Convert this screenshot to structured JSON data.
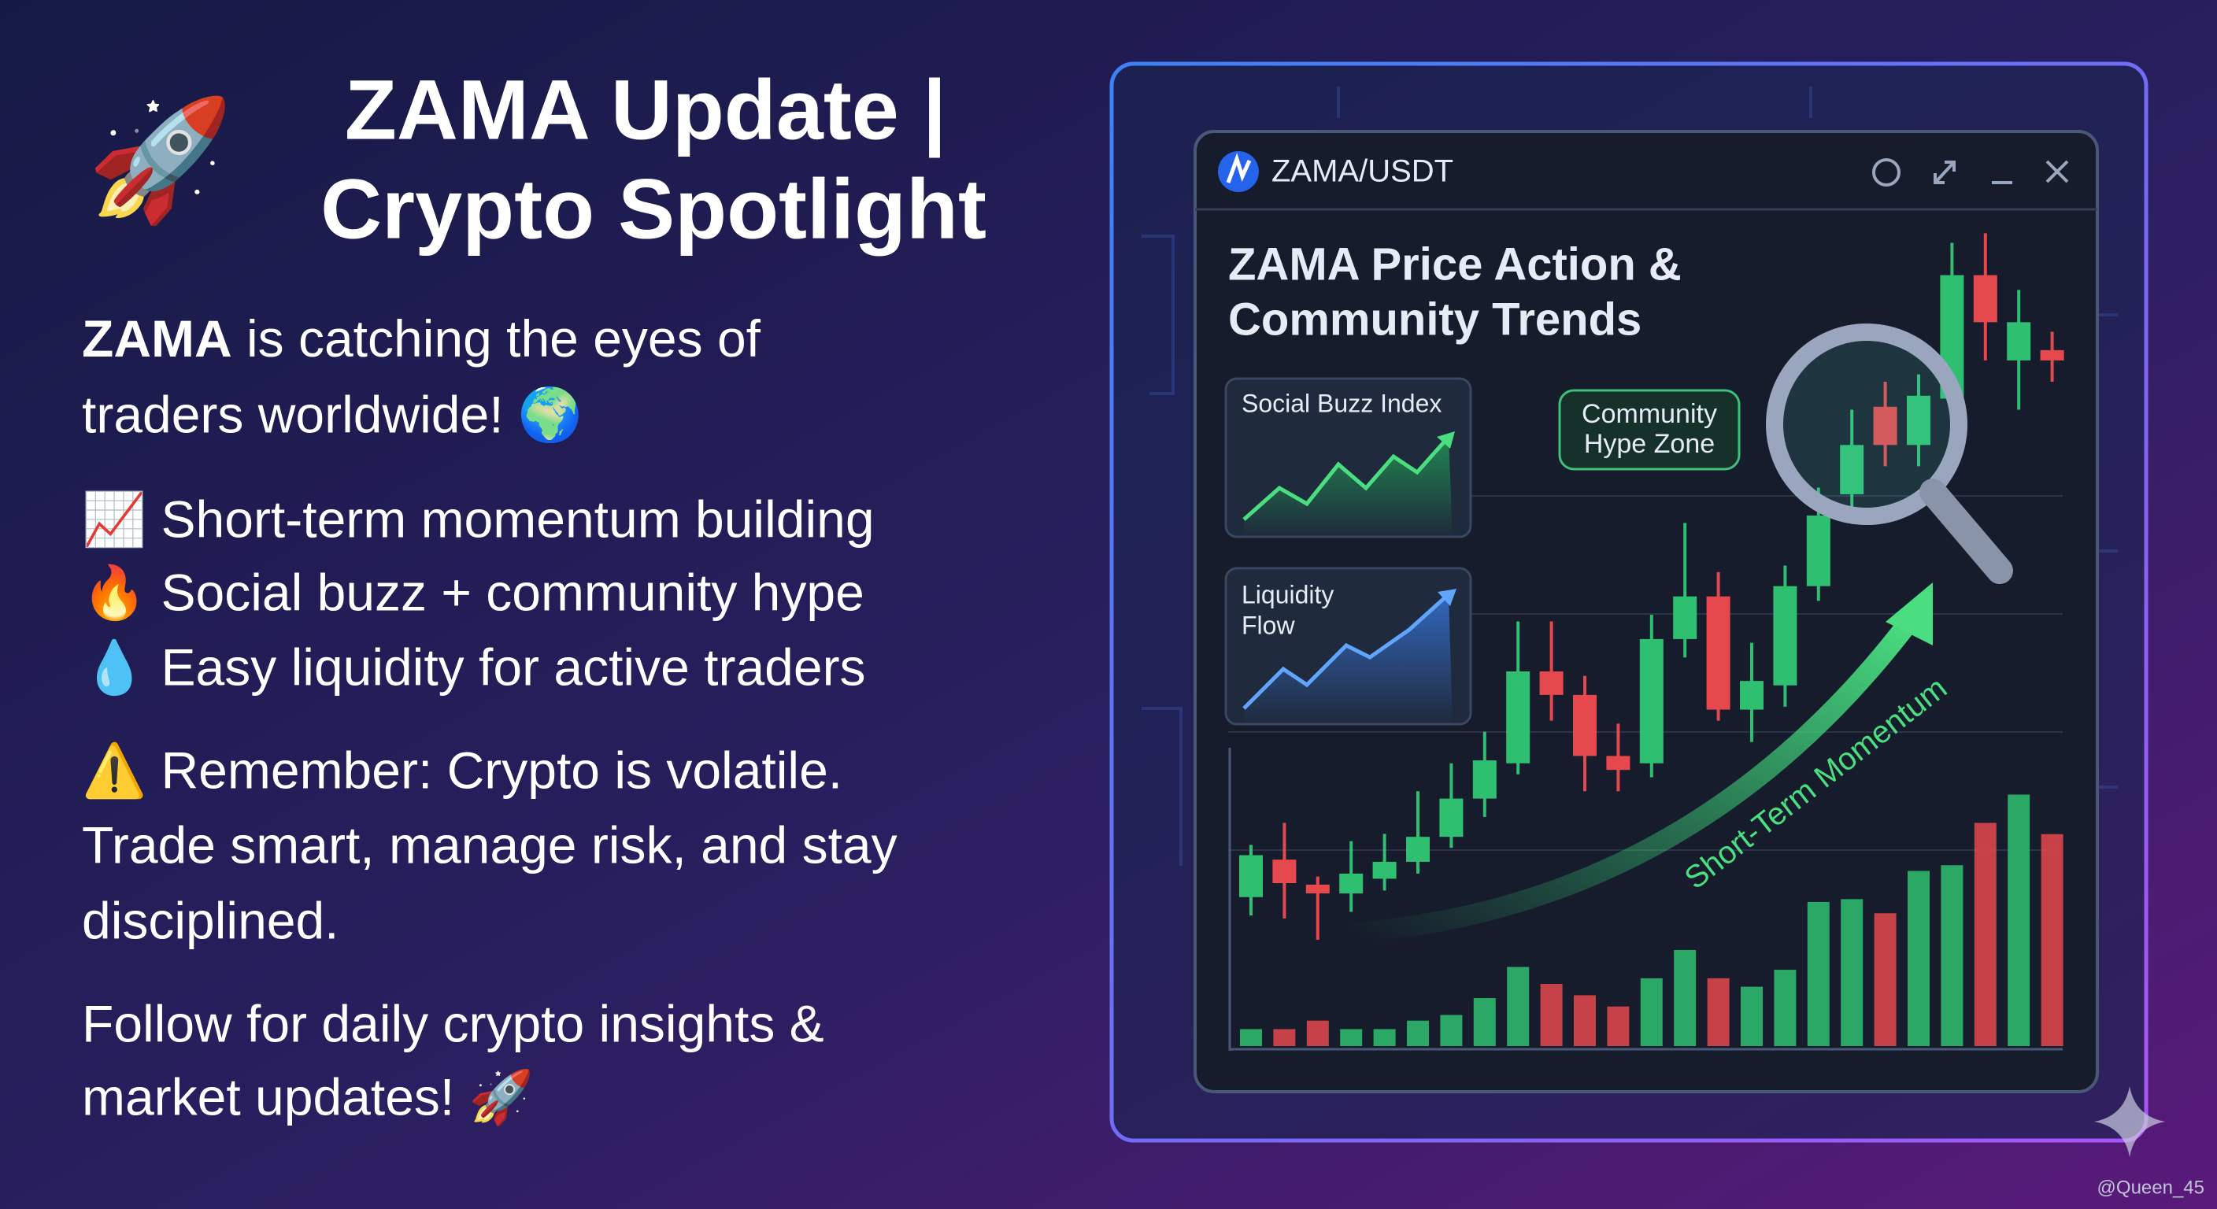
{
  "headline": {
    "lines": [
      "ZAMA Update |",
      "Crypto Spotlight"
    ],
    "icon": "🚀"
  },
  "intro": {
    "bold": "ZAMA",
    "lines": [
      " is catching the eyes of",
      "traders worldwide! 🌍"
    ]
  },
  "bullets": [
    "📈 Short-term momentum building",
    "🔥 Social buzz + community hype",
    "💧 Easy liquidity for active traders"
  ],
  "warning": [
    "⚠️ Remember: Crypto is volatile.",
    "Trade smart, manage risk, and stay",
    "disciplined."
  ],
  "follow": [
    "Follow for daily crypto insights &",
    "market updates! 🚀"
  ],
  "window": {
    "pair": "ZAMA/USDT",
    "chart_title": [
      "ZAMA Price Action &",
      "Community Trends"
    ],
    "cards": {
      "social": "Social Buzz Index",
      "liquidity": [
        "Liquidity",
        "Flow"
      ]
    },
    "callout": [
      "Community",
      "Hype Zone"
    ],
    "arrow_label": "Short-Term Momentum",
    "chart": {
      "type": "candlestick",
      "up_color": "#2fbf71",
      "down_color": "#e5484d",
      "ylim": [
        0,
        100
      ],
      "volume_lim": [
        0,
        200
      ],
      "open": [
        8.7,
        13.8,
        10.4,
        9.2,
        11.2,
        13.5,
        16.9,
        22.1,
        26.9,
        39.4,
        36.2,
        27.9,
        26.9,
        43.8,
        49.6,
        34.2,
        37.5,
        51.0,
        63.5,
        75.4,
        70.2,
        76.5,
        93.3,
        81.7,
        83.1
      ],
      "high": [
        15.8,
        18.8,
        11.5,
        16.3,
        17.3,
        23.1,
        26.9,
        31.2,
        46.2,
        46.2,
        38.8,
        32.3,
        47.1,
        59.6,
        52.9,
        43.3,
        53.8,
        64.4,
        75.0,
        78.8,
        79.8,
        97.7,
        99.0,
        91.3,
        85.6
      ],
      "low": [
        6.2,
        5.8,
        2.9,
        6.7,
        9.6,
        11.9,
        15.4,
        19.6,
        25.4,
        32.7,
        23.1,
        23.1,
        25.0,
        41.3,
        32.7,
        29.8,
        34.6,
        49.0,
        59.6,
        67.3,
        67.3,
        75.0,
        81.7,
        75.0,
        78.8
      ],
      "close": [
        14.4,
        10.6,
        9.2,
        11.9,
        13.5,
        16.9,
        22.1,
        27.3,
        39.4,
        36.2,
        27.9,
        26.0,
        43.8,
        49.6,
        34.2,
        38.1,
        51.0,
        60.6,
        70.2,
        70.2,
        76.9,
        93.3,
        86.9,
        86.9,
        81.7
      ],
      "volume": [
        12,
        12,
        18,
        12,
        12,
        18,
        22,
        34,
        56,
        44,
        36,
        28,
        48,
        68,
        48,
        42,
        54,
        102,
        104,
        94,
        124,
        128,
        158,
        178,
        150
      ]
    }
  },
  "watermark": "@Queen_45"
}
